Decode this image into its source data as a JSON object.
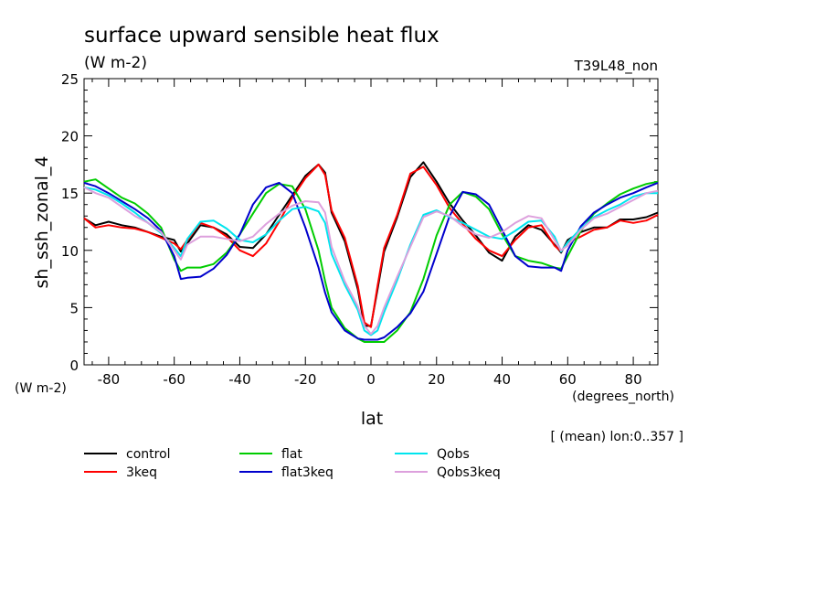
{
  "chart_data": {
    "type": "line",
    "title": "surface upward sensible heat flux",
    "units": "(W m-2)",
    "run_label": "T39L48_non",
    "ylabel": "sh_ssh_zonal_4",
    "yunits": "(W m-2)",
    "xlabel": "lat",
    "xunits": "(degrees_north)",
    "note": "[ (mean) lon:0..357 ]",
    "xlim": [
      -87.5,
      87.5
    ],
    "ylim": [
      0,
      25
    ],
    "xticks": [
      -80,
      -60,
      -40,
      -20,
      0,
      20,
      40,
      60,
      80
    ],
    "yticks": [
      0,
      5,
      10,
      15,
      20,
      25
    ],
    "x": [
      -87.5,
      -84,
      -80,
      -76,
      -72,
      -68,
      -64,
      -60,
      -58,
      -56,
      -52,
      -48,
      -44,
      -40,
      -36,
      -32,
      -28,
      -24,
      -20,
      -16,
      -14,
      -12,
      -8,
      -4,
      -2,
      0,
      2,
      4,
      8,
      12,
      16,
      20,
      24,
      28,
      32,
      36,
      40,
      44,
      48,
      52,
      56,
      58,
      60,
      64,
      68,
      72,
      76,
      80,
      84,
      87.5
    ],
    "series": [
      {
        "name": "control",
        "color": "#000000",
        "values": [
          12.8,
          12.2,
          12.5,
          12.2,
          12.0,
          11.6,
          11.2,
          10.9,
          9.9,
          10.6,
          12.2,
          12.0,
          11.4,
          10.3,
          10.2,
          11.4,
          13.1,
          14.8,
          16.5,
          17.5,
          16.8,
          13.3,
          10.8,
          6.6,
          3.4,
          3.4,
          6.6,
          9.9,
          12.9,
          16.4,
          17.7,
          16.0,
          14.1,
          12.6,
          11.3,
          9.8,
          9.1,
          11.2,
          12.2,
          11.8,
          10.5,
          9.8,
          10.9,
          11.6,
          12.0,
          12.0,
          12.7,
          12.7,
          12.9,
          13.3
        ]
      },
      {
        "name": "3keq",
        "color": "#ff0000",
        "values": [
          12.8,
          12.0,
          12.2,
          12.0,
          11.9,
          11.6,
          11.1,
          10.6,
          10.1,
          10.9,
          12.4,
          12.0,
          11.2,
          10.0,
          9.5,
          10.6,
          12.5,
          14.6,
          16.3,
          17.5,
          16.6,
          13.5,
          11.1,
          6.9,
          3.7,
          3.3,
          6.9,
          10.2,
          13.1,
          16.7,
          17.3,
          15.7,
          13.7,
          12.3,
          11.0,
          10.0,
          9.5,
          10.9,
          12.0,
          12.2,
          10.4,
          9.9,
          10.7,
          11.2,
          11.8,
          12.0,
          12.6,
          12.4,
          12.6,
          13.1
        ]
      },
      {
        "name": "flat",
        "color": "#00cc00",
        "values": [
          16.0,
          16.2,
          15.4,
          14.6,
          14.1,
          13.2,
          12.0,
          9.2,
          8.2,
          8.5,
          8.5,
          8.8,
          9.8,
          11.4,
          13.2,
          15.0,
          15.8,
          15.6,
          13.6,
          10.0,
          7.3,
          5.0,
          3.2,
          2.3,
          2.0,
          2.0,
          2.0,
          2.0,
          3.0,
          4.6,
          7.5,
          11.3,
          14.0,
          15.1,
          14.7,
          13.6,
          11.4,
          9.5,
          9.1,
          8.9,
          8.5,
          8.4,
          9.5,
          11.7,
          13.2,
          14.1,
          14.9,
          15.4,
          15.8,
          16.0
        ]
      },
      {
        "name": "flat3keq",
        "color": "#0000cc",
        "values": [
          15.9,
          15.6,
          15.0,
          14.3,
          13.6,
          12.8,
          11.7,
          9.5,
          7.5,
          7.6,
          7.7,
          8.4,
          9.6,
          11.4,
          14.0,
          15.5,
          15.9,
          15.0,
          12.0,
          8.5,
          6.3,
          4.6,
          3.0,
          2.3,
          2.2,
          2.2,
          2.2,
          2.4,
          3.3,
          4.5,
          6.4,
          9.7,
          13.0,
          15.1,
          14.9,
          14.0,
          11.8,
          9.5,
          8.6,
          8.5,
          8.5,
          8.2,
          10.0,
          12.1,
          13.3,
          14.0,
          14.6,
          15.0,
          15.5,
          15.9
        ]
      },
      {
        "name": "Qobs",
        "color": "#00e5ee",
        "values": [
          15.5,
          15.3,
          14.8,
          14.1,
          13.3,
          12.4,
          11.5,
          10.2,
          9.5,
          11.0,
          12.5,
          12.6,
          11.9,
          10.9,
          10.7,
          11.4,
          12.6,
          13.6,
          13.8,
          13.4,
          12.4,
          9.7,
          7.0,
          4.8,
          3.0,
          2.6,
          3.0,
          4.6,
          7.4,
          10.5,
          13.1,
          13.5,
          12.9,
          12.4,
          11.8,
          11.2,
          11.0,
          11.7,
          12.5,
          12.6,
          11.2,
          9.9,
          10.7,
          11.9,
          12.9,
          13.5,
          14.0,
          14.7,
          15.0,
          15.0
        ]
      },
      {
        "name": "Qobs3keq",
        "color": "#dda0dd",
        "values": [
          15.5,
          15.0,
          14.6,
          13.8,
          13.0,
          12.4,
          11.6,
          10.0,
          9.2,
          10.5,
          11.2,
          11.2,
          11.0,
          10.8,
          11.2,
          12.3,
          13.2,
          13.9,
          14.3,
          14.2,
          13.3,
          10.3,
          7.3,
          5.1,
          3.4,
          2.7,
          3.4,
          5.0,
          7.7,
          10.3,
          12.9,
          13.4,
          13.0,
          12.1,
          11.4,
          11.1,
          11.6,
          12.4,
          13.0,
          12.8,
          10.9,
          10.0,
          10.4,
          11.8,
          12.8,
          13.2,
          13.8,
          14.4,
          15.0,
          15.2
        ]
      }
    ]
  }
}
